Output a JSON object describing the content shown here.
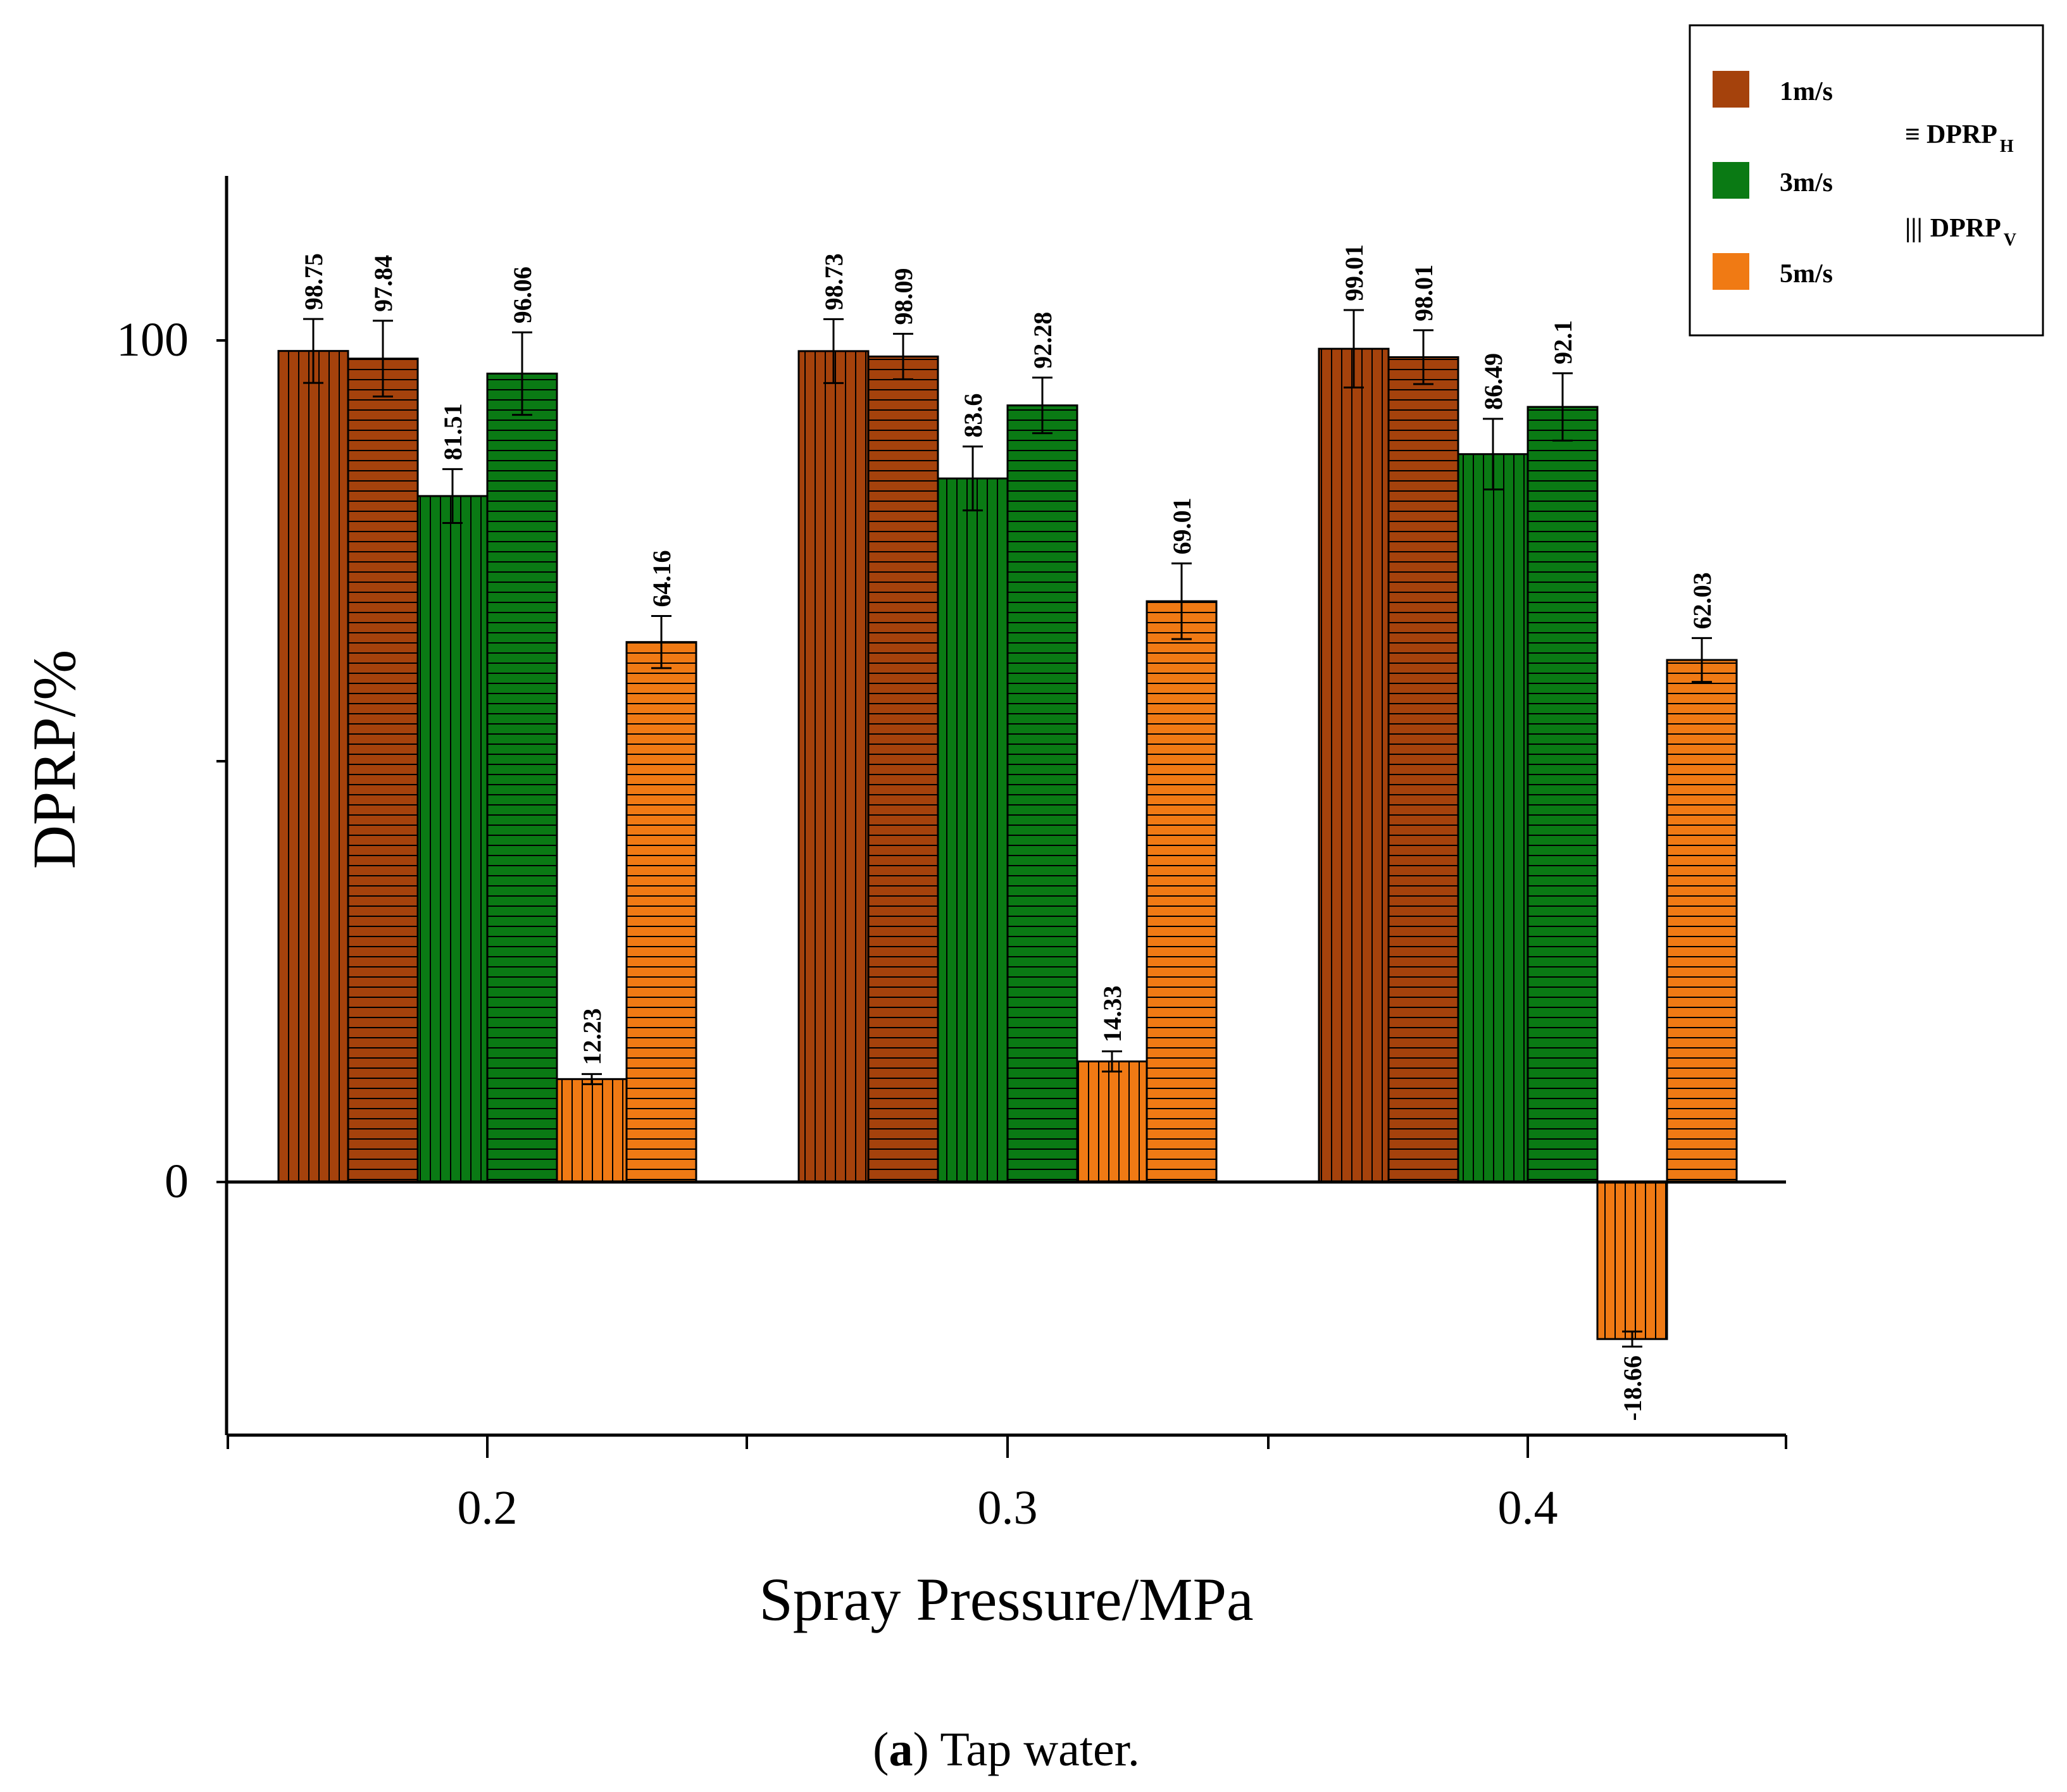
{
  "chart_data": {
    "type": "bar",
    "categories": [
      "0.2",
      "0.3",
      "0.4"
    ],
    "xlabel": "Spray Pressure/MPa",
    "ylabel": "DPRP/%",
    "ylim": [
      -30,
      120
    ],
    "yticks": [
      "0",
      "100"
    ],
    "grid": false,
    "legend_position": "top-right",
    "speeds": [
      {
        "name": "1m/s",
        "color": "#A5420C"
      },
      {
        "name": "3m/s",
        "color": "#0A7A14"
      },
      {
        "name": "5m/s",
        "color": "#F07A14"
      }
    ],
    "pattern_legend": [
      {
        "symbol": "≡",
        "name": "DPRP",
        "sub": "H",
        "pattern": "horizontal"
      },
      {
        "symbol": "|||",
        "name": "DPRP",
        "sub": "V",
        "pattern": "vertical"
      }
    ],
    "series": [
      {
        "speed": "1m/s",
        "pattern": "vertical",
        "values": [
          98.75,
          98.73,
          99.01
        ],
        "labels": [
          "98.75",
          "98.73",
          "99.01"
        ],
        "err": [
          3.8,
          3.8,
          4.6
        ]
      },
      {
        "speed": "1m/s",
        "pattern": "horizontal",
        "values": [
          97.84,
          98.09,
          98.01
        ],
        "labels": [
          "97.84",
          "98.09",
          "98.01"
        ],
        "err": [
          4.5,
          2.7,
          3.2
        ]
      },
      {
        "speed": "3m/s",
        "pattern": "vertical",
        "values": [
          81.51,
          83.6,
          86.49
        ],
        "labels": [
          "81.51",
          "83.6",
          "86.49"
        ],
        "err": [
          3.2,
          3.8,
          4.2
        ]
      },
      {
        "speed": "3m/s",
        "pattern": "horizontal",
        "values": [
          96.06,
          92.28,
          92.1
        ],
        "labels": [
          "96.06",
          "92.28",
          "92.1"
        ],
        "err": [
          4.9,
          3.3,
          4.0
        ]
      },
      {
        "speed": "5m/s",
        "pattern": "vertical",
        "values": [
          12.23,
          14.33,
          -18.66
        ],
        "labels": [
          "12.23",
          "14.33",
          "-18.66"
        ],
        "err": [
          0.6,
          1.2,
          0.9
        ]
      },
      {
        "speed": "5m/s",
        "pattern": "horizontal",
        "values": [
          64.16,
          69.01,
          62.03
        ],
        "labels": [
          "64.16",
          "69.01",
          "62.03"
        ],
        "err": [
          3.1,
          4.5,
          2.6
        ]
      }
    ]
  },
  "caption": {
    "letter": "a",
    "open": "(",
    "close": ")",
    "text": " Tap water."
  }
}
